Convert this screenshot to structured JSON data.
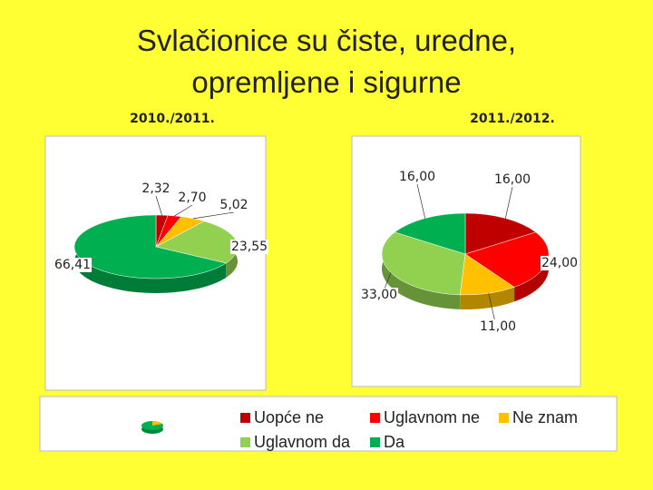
{
  "title": "Svlačionice su čiste, uredne, opremljene i sigurne",
  "chart_data": [
    {
      "type": "pie",
      "subtitle": "2010./2011.",
      "categories": [
        "Uopće ne",
        "Uglavnom ne",
        "Ne znam",
        "Uglavnom da",
        "Da"
      ],
      "values": [
        2.32,
        2.7,
        5.02,
        23.55,
        66.41
      ],
      "value_labels": [
        "2,32",
        "2,70",
        "5,02",
        "23,55",
        "66,41"
      ],
      "colors": [
        "#c00000",
        "#ff0000",
        "#ffc000",
        "#92d050",
        "#00b050"
      ]
    },
    {
      "type": "pie",
      "subtitle": "2011./2012.",
      "categories": [
        "Uopće ne",
        "Uglavnom ne",
        "Ne znam",
        "Uglavnom da",
        "Da"
      ],
      "values": [
        16.0,
        24.0,
        11.0,
        33.0,
        16.0
      ],
      "value_labels": [
        "16,00",
        "24,00",
        "11,00",
        "33,00",
        "16,00"
      ],
      "colors": [
        "#c00000",
        "#ff0000",
        "#ffc000",
        "#92d050",
        "#00b050"
      ]
    }
  ]
}
